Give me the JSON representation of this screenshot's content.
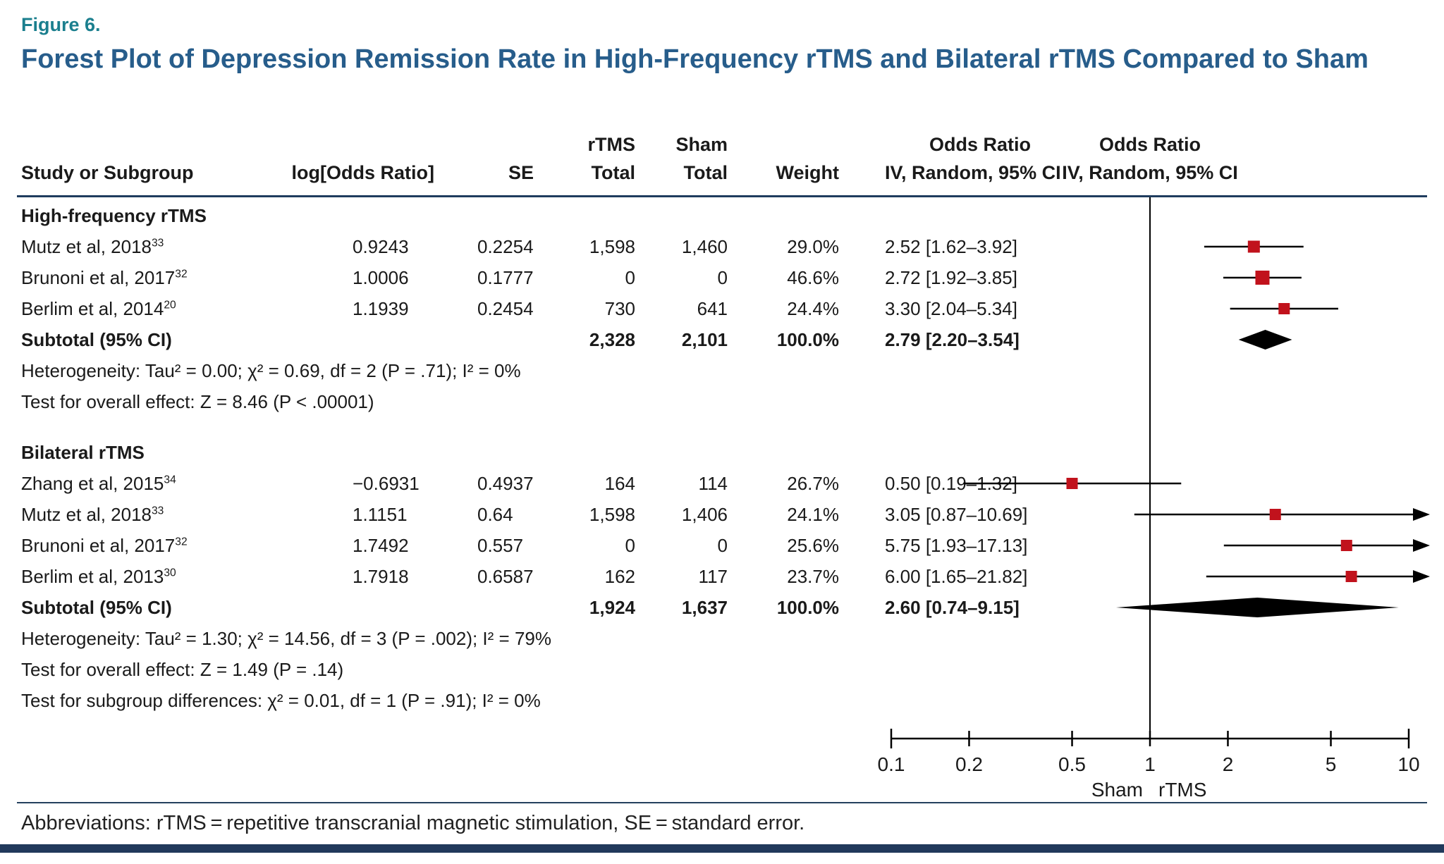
{
  "figure": {
    "label": "Figure 6.",
    "title": "Forest Plot of Depression Remission Rate in High-Frequency rTMS and Bilateral rTMS Compared to Sham",
    "abbreviations": "Abbreviations: rTMS = repetitive transcranial magnetic stimulation, SE = standard error."
  },
  "columns": {
    "study": "Study or Subgroup",
    "log_or": "log[Odds Ratio]",
    "se": "SE",
    "rtms_line1": "rTMS",
    "rtms_line2": "Total",
    "sham_line1": "Sham",
    "sham_line2": "Total",
    "weight": "Weight",
    "or_text_line1": "Odds Ratio",
    "or_text_line2": "IV, Random, 95% CI",
    "or_plot_line1": "Odds Ratio",
    "or_plot_line2": "IV, Random, 95% CI"
  },
  "chart_data": {
    "type": "forest",
    "x_scale": "log",
    "xlim": [
      0.1,
      10
    ],
    "axis_ticks": [
      0.1,
      0.2,
      0.5,
      1,
      2,
      5,
      10
    ],
    "axis_left_label": "Sham",
    "axis_right_label": "rTMS",
    "marker_color": "#c1121c",
    "groups": [
      {
        "name": "High-frequency rTMS",
        "studies": [
          {
            "study": "Mutz et al, 2018",
            "ref": "33",
            "log_or": "0.9243",
            "se": "0.2254",
            "rtms_total": "1,598",
            "sham_total": "1,460",
            "weight": "29.0%",
            "or": 2.52,
            "ci_low": 1.62,
            "ci_high": 3.92,
            "or_label": "2.52 [1.62–3.92]"
          },
          {
            "study": "Brunoni et al, 2017",
            "ref": "32",
            "log_or": "1.0006",
            "se": "0.1777",
            "rtms_total": "0",
            "sham_total": "0",
            "weight": "46.6%",
            "or": 2.72,
            "ci_low": 1.92,
            "ci_high": 3.85,
            "or_label": "2.72 [1.92–3.85]"
          },
          {
            "study": "Berlim et al, 2014",
            "ref": "20",
            "log_or": "1.1939",
            "se": "0.2454",
            "rtms_total": "730",
            "sham_total": "641",
            "weight": "24.4%",
            "or": 3.3,
            "ci_low": 2.04,
            "ci_high": 5.34,
            "or_label": "3.30 [2.04–5.34]"
          }
        ],
        "subtotal": {
          "label": "Subtotal (95% CI)",
          "rtms_total": "2,328",
          "sham_total": "2,101",
          "weight": "100.0%",
          "or": 2.79,
          "ci_low": 2.2,
          "ci_high": 3.54,
          "or_label": "2.79 [2.20–3.54]"
        },
        "heterogeneity": "Heterogeneity: Tau² = 0.00; χ² = 0.69, df = 2 (P = .71); I² = 0%",
        "overall_effect": "Test for overall effect: Z = 8.46 (P < .00001)"
      },
      {
        "name": "Bilateral rTMS",
        "studies": [
          {
            "study": "Zhang et al, 2015",
            "ref": "34",
            "log_or": "−0.6931",
            "se": "0.4937",
            "rtms_total": "164",
            "sham_total": "114",
            "weight": "26.7%",
            "or": 0.5,
            "ci_low": 0.19,
            "ci_high": 1.32,
            "or_label": "0.50 [0.19–1.32]"
          },
          {
            "study": "Mutz et al, 2018",
            "ref": "33",
            "log_or": "1.1151",
            "se": "0.64",
            "rtms_total": "1,598",
            "sham_total": "1,406",
            "weight": "24.1%",
            "or": 3.05,
            "ci_low": 0.87,
            "ci_high": 10.69,
            "or_label": "3.05 [0.87–10.69]"
          },
          {
            "study": "Brunoni et al, 2017",
            "ref": "32",
            "log_or": "1.7492",
            "se": "0.557",
            "rtms_total": "0",
            "sham_total": "0",
            "weight": "25.6%",
            "or": 5.75,
            "ci_low": 1.93,
            "ci_high": 17.13,
            "or_label": "5.75 [1.93–17.13]"
          },
          {
            "study": "Berlim et al, 2013",
            "ref": "30",
            "log_or": "1.7918",
            "se": "0.6587",
            "rtms_total": "162",
            "sham_total": "117",
            "weight": "23.7%",
            "or": 6.0,
            "ci_low": 1.65,
            "ci_high": 21.82,
            "or_label": "6.00 [1.65–21.82]"
          }
        ],
        "subtotal": {
          "label": "Subtotal (95% CI)",
          "rtms_total": "1,924",
          "sham_total": "1,637",
          "weight": "100.0%",
          "or": 2.6,
          "ci_low": 0.74,
          "ci_high": 9.15,
          "or_label": "2.60 [0.74–9.15]"
        },
        "heterogeneity": "Heterogeneity: Tau² = 1.30; χ² = 14.56, df = 3 (P = .002); I² = 79%",
        "overall_effect": "Test for overall effect: Z = 1.49 (P = .14)",
        "subgroup_difference": "Test for subgroup differences: χ² = 0.01, df = 1 (P = .91); I² = 0%"
      }
    ]
  },
  "colors": {
    "accent_teal": "#1b7f8e",
    "title_blue": "#275d8b",
    "marker_red": "#c1121c",
    "rule_navy": "#1f3c5e"
  }
}
